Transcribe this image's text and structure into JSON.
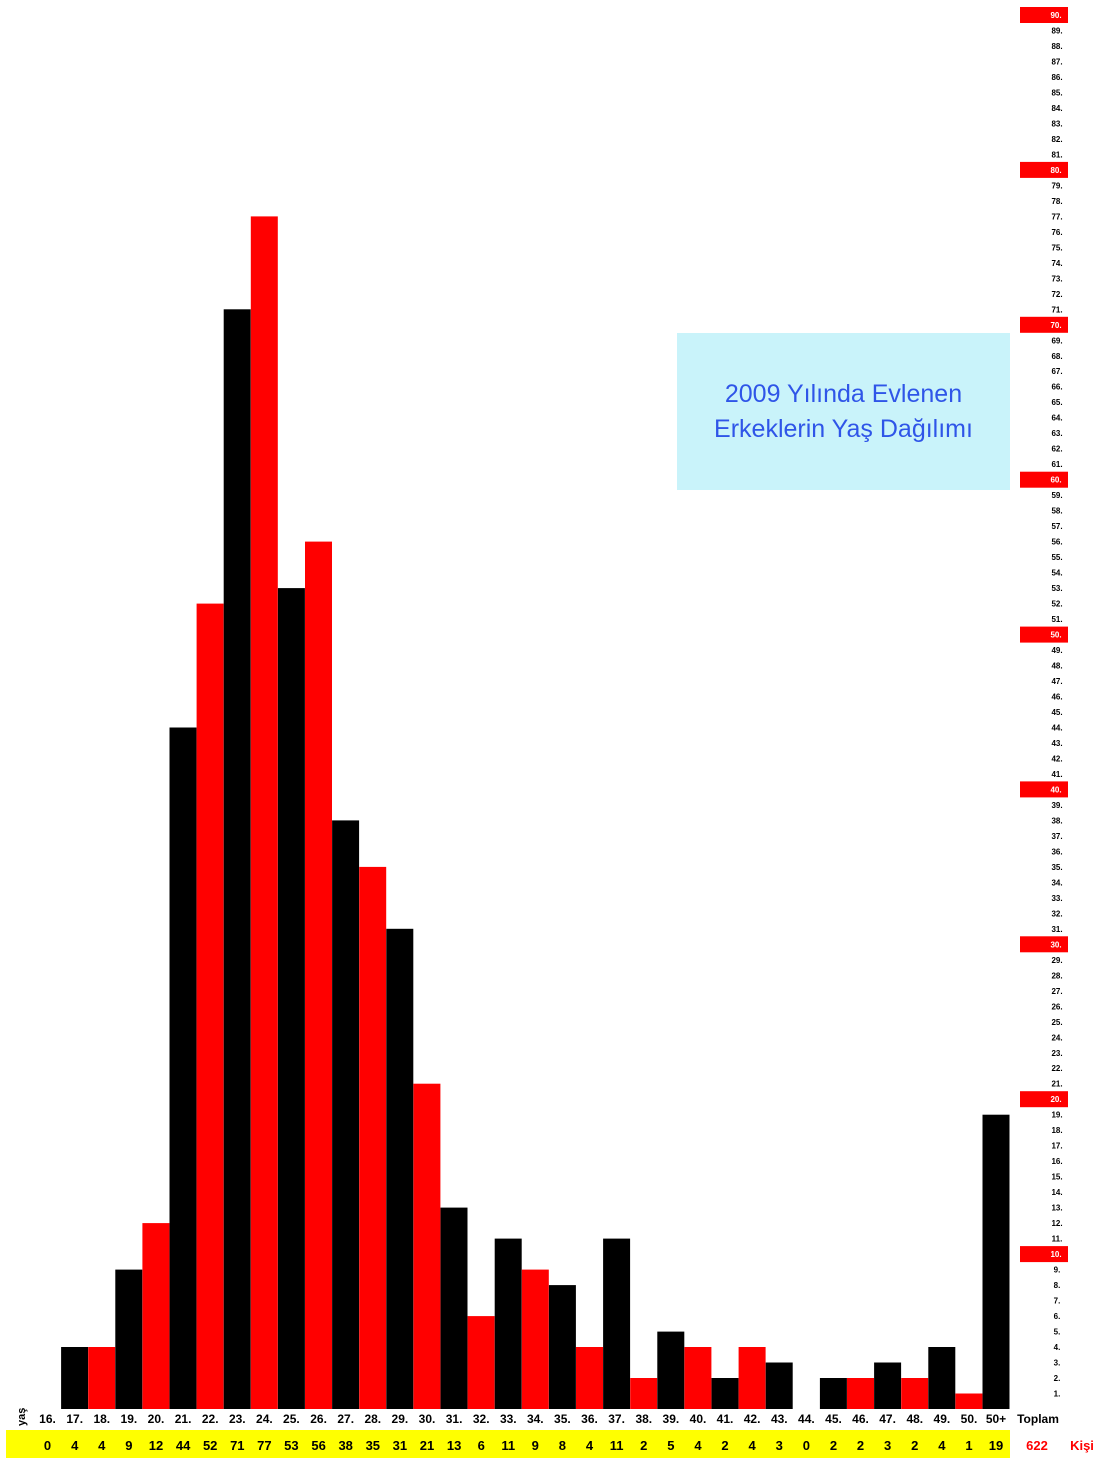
{
  "chart_data": {
    "type": "bar",
    "title_lines": [
      "2009 Yılında Evlenen",
      "Erkeklerin Yaş Dağılımı"
    ],
    "xlabel": "yaş",
    "categories": [
      "16.",
      "17.",
      "18.",
      "19.",
      "20.",
      "21.",
      "22.",
      "23.",
      "24.",
      "25.",
      "26.",
      "27.",
      "28.",
      "29.",
      "30.",
      "31.",
      "32.",
      "33.",
      "34.",
      "35.",
      "36.",
      "37.",
      "38.",
      "39.",
      "40.",
      "41.",
      "42.",
      "43.",
      "44.",
      "45.",
      "46.",
      "47.",
      "48.",
      "49.",
      "50.",
      "50+"
    ],
    "values": [
      0,
      4,
      4,
      9,
      12,
      44,
      52,
      71,
      77,
      53,
      56,
      38,
      35,
      31,
      21,
      13,
      6,
      11,
      9,
      8,
      4,
      11,
      2,
      5,
      4,
      2,
      4,
      3,
      0,
      2,
      2,
      3,
      2,
      4,
      1,
      19
    ],
    "count_labels": [
      "0",
      "4",
      "4",
      "9",
      "12",
      "44",
      "52",
      "71",
      "77",
      "53",
      "56",
      "38",
      "35",
      "31",
      "21",
      "13",
      "6",
      "11",
      "9",
      "8",
      "4",
      "11",
      "2",
      "5",
      "4",
      "2",
      "4",
      "3",
      "0",
      "2",
      "2",
      "3",
      "2",
      "4",
      "1",
      "19"
    ],
    "ylim": [
      0,
      90
    ],
    "y_ticks": [
      "1.",
      "2.",
      "3.",
      "4.",
      "5.",
      "6.",
      "7.",
      "8.",
      "9.",
      "10.",
      "11.",
      "12.",
      "13.",
      "14.",
      "15.",
      "16.",
      "17.",
      "18.",
      "19.",
      "20.",
      "21.",
      "22.",
      "23.",
      "24.",
      "25.",
      "26.",
      "27.",
      "28.",
      "29.",
      "30.",
      "31.",
      "32.",
      "33.",
      "34.",
      "35.",
      "36.",
      "37.",
      "38.",
      "39.",
      "40.",
      "41.",
      "42.",
      "43.",
      "44.",
      "45.",
      "46.",
      "47.",
      "48.",
      "49.",
      "50.",
      "51.",
      "52.",
      "53.",
      "54.",
      "55.",
      "56.",
      "57.",
      "58.",
      "59.",
      "60.",
      "61.",
      "62.",
      "63.",
      "64.",
      "65.",
      "66.",
      "67.",
      "68.",
      "69.",
      "70.",
      "71.",
      "72.",
      "73.",
      "74.",
      "75.",
      "76.",
      "77.",
      "78.",
      "79.",
      "80.",
      "81.",
      "82.",
      "83.",
      "84.",
      "85.",
      "86.",
      "87.",
      "88.",
      "89.",
      "90."
    ],
    "y_axis_position": "right",
    "highlighted_ticks_every": 10,
    "total_label": "Toplam",
    "total_value": "622",
    "unit_label": "Kişi",
    "grid": false,
    "colors": {
      "bar_a": "#000000",
      "bar_b": "#ff0000",
      "count_band": "#ffff00",
      "tick_highlight": "#ff0000",
      "total_text": "#ff0000",
      "title_bg": "#c9f3fa",
      "title_text": "#2f55e8"
    }
  }
}
